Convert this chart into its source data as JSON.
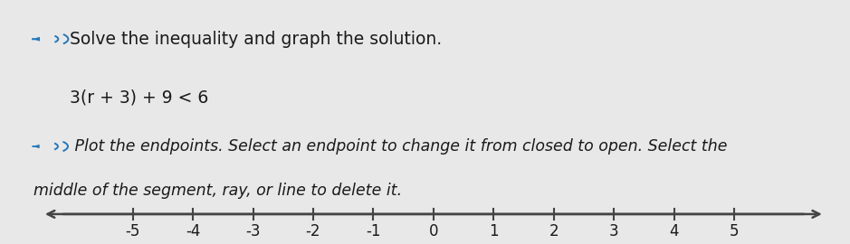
{
  "title_line1": "Solve the inequality and graph the solution.",
  "equation": "3(r + 3) + 9 < 6",
  "instruction_line1": " Plot the endpoints. Select an endpoint to change it from closed to open. Select the",
  "instruction_line2": "middle of the segment, ray, or line to delete it.",
  "number_line_min": -6.5,
  "number_line_max": 6.5,
  "tick_positions": [
    -5,
    -4,
    -3,
    -2,
    -1,
    0,
    1,
    2,
    3,
    4,
    5
  ],
  "tick_labels": [
    "-5",
    "-4",
    "-3",
    "-2",
    "-1",
    "0",
    "1",
    "2",
    "3",
    "4",
    "5"
  ],
  "background_color": "#e8e8e8",
  "left_bar_color": "#4a9fd4",
  "text_color": "#1a1a1a",
  "line_color": "#444444",
  "speaker_color": "#2277bb",
  "font_size_title": 13.5,
  "font_size_equation": 13.5,
  "font_size_instruction": 12.5,
  "font_size_ticks": 12
}
